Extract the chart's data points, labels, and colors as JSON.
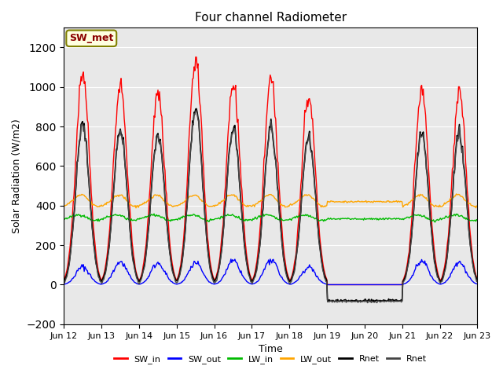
{
  "title": "Four channel Radiometer",
  "xlabel": "Time",
  "ylabel": "Solar Radiation (W/m2)",
  "ylim": [
    -200,
    1300
  ],
  "yticks": [
    -200,
    0,
    200,
    400,
    600,
    800,
    1000,
    1200
  ],
  "annotation": "SW_met",
  "colors": {
    "SW_in": "#ff0000",
    "SW_out": "#0000ff",
    "LW_in": "#00bb00",
    "LW_out": "#ffa500",
    "Rnet1": "#000000",
    "Rnet2": "#444444"
  },
  "bg_color": "#e8e8e8",
  "day_labels": [
    "Jun 12",
    "Jun 13",
    "Jun 14",
    "Jun 15",
    "Jun 16",
    "Jun 17",
    "Jun 18",
    "Jun 19",
    "Jun 20",
    "Jun 21",
    "Jun 22",
    "Jun 23"
  ],
  "legend_labels": [
    "SW_in",
    "SW_out",
    "LW_in",
    "LW_out",
    "Rnet",
    "Rnet"
  ],
  "day_peaks_SW_in": [
    1080,
    1005,
    975,
    1140,
    1020,
    1035,
    960,
    0,
    0,
    990,
    970
  ],
  "day_peaks_SW_out": [
    90,
    115,
    110,
    110,
    120,
    125,
    90,
    0,
    0,
    120,
    115
  ],
  "day_peaks_Rnet": [
    810,
    790,
    760,
    890,
    795,
    800,
    750,
    0,
    0,
    770,
    765
  ],
  "LW_in_base": 330,
  "LW_out_base": 400,
  "night_Rnet": -100,
  "overcast_days": [
    7,
    8
  ],
  "overcast_Rnet": -80,
  "overcast_LW_in": 333,
  "overcast_LW_out": 420
}
